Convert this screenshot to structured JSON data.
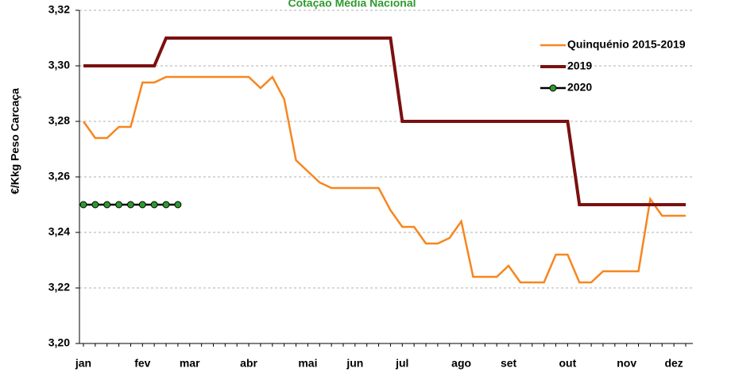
{
  "chart_data": {
    "type": "line",
    "title": "Cotação Média Nacional",
    "y_label": "€/Kkg Peso Carcaça",
    "categories": [
      "jan",
      null,
      null,
      null,
      null,
      "fev",
      null,
      null,
      null,
      "mar",
      null,
      null,
      null,
      null,
      "abr",
      null,
      null,
      null,
      null,
      "mai",
      null,
      null,
      null,
      "jun",
      null,
      null,
      null,
      "jul",
      null,
      null,
      null,
      null,
      "ago",
      null,
      null,
      null,
      "set",
      null,
      null,
      null,
      null,
      "out",
      null,
      null,
      null,
      null,
      "nov",
      null,
      null,
      null,
      "dez",
      null
    ],
    "series": [
      {
        "name": "Quinquénio 2015-2019",
        "color": "#f7861e",
        "markers": false,
        "values": [
          3.28,
          3.274,
          3.274,
          3.278,
          3.278,
          3.294,
          3.294,
          3.296,
          3.296,
          3.296,
          3.296,
          3.296,
          3.296,
          3.296,
          3.296,
          3.292,
          3.296,
          3.288,
          3.266,
          3.262,
          3.258,
          3.256,
          3.256,
          3.256,
          3.256,
          3.256,
          3.248,
          3.242,
          3.242,
          3.236,
          3.236,
          3.238,
          3.244,
          3.224,
          3.224,
          3.224,
          3.228,
          3.222,
          3.222,
          3.222,
          3.232,
          3.232,
          3.222,
          3.222,
          3.226,
          3.226,
          3.226,
          3.226,
          3.252,
          3.246,
          3.246,
          3.246
        ]
      },
      {
        "name": "2019",
        "color": "#7b1010",
        "markers": false,
        "values": [
          3.3,
          3.3,
          3.3,
          3.3,
          3.3,
          3.3,
          3.3,
          3.31,
          3.31,
          3.31,
          3.31,
          3.31,
          3.31,
          3.31,
          3.31,
          3.31,
          3.31,
          3.31,
          3.31,
          3.31,
          3.31,
          3.31,
          3.31,
          3.31,
          3.31,
          3.31,
          3.31,
          3.28,
          3.28,
          3.28,
          3.28,
          3.28,
          3.28,
          3.28,
          3.28,
          3.28,
          3.28,
          3.28,
          3.28,
          3.28,
          3.28,
          3.28,
          3.25,
          3.25,
          3.25,
          3.25,
          3.25,
          3.25,
          3.25,
          3.25,
          3.25,
          3.25
        ]
      },
      {
        "name": "2020",
        "color": "#000000",
        "marker_color": "#2e9a2e",
        "markers": true,
        "values": [
          3.25,
          3.25,
          3.25,
          3.25,
          3.25,
          3.25,
          3.25,
          3.25,
          3.25,
          null,
          null,
          null,
          null,
          null,
          null,
          null,
          null,
          null,
          null,
          null,
          null,
          null,
          null,
          null,
          null,
          null,
          null,
          null,
          null,
          null,
          null,
          null,
          null,
          null,
          null,
          null,
          null,
          null,
          null,
          null,
          null,
          null,
          null,
          null,
          null,
          null,
          null,
          null,
          null,
          null,
          null,
          null
        ]
      }
    ],
    "ylim": [
      3.2,
      3.32
    ],
    "yticks": [
      {
        "value": 3.2,
        "label": "3,20"
      },
      {
        "value": 3.22,
        "label": "3,22"
      },
      {
        "value": 3.24,
        "label": "3,24"
      },
      {
        "value": 3.26,
        "label": "3,26"
      },
      {
        "value": 3.28,
        "label": "3,28"
      },
      {
        "value": 3.3,
        "label": "3,30"
      },
      {
        "value": 3.32,
        "label": "3,32"
      }
    ],
    "grid": true,
    "legend": "top-right"
  }
}
